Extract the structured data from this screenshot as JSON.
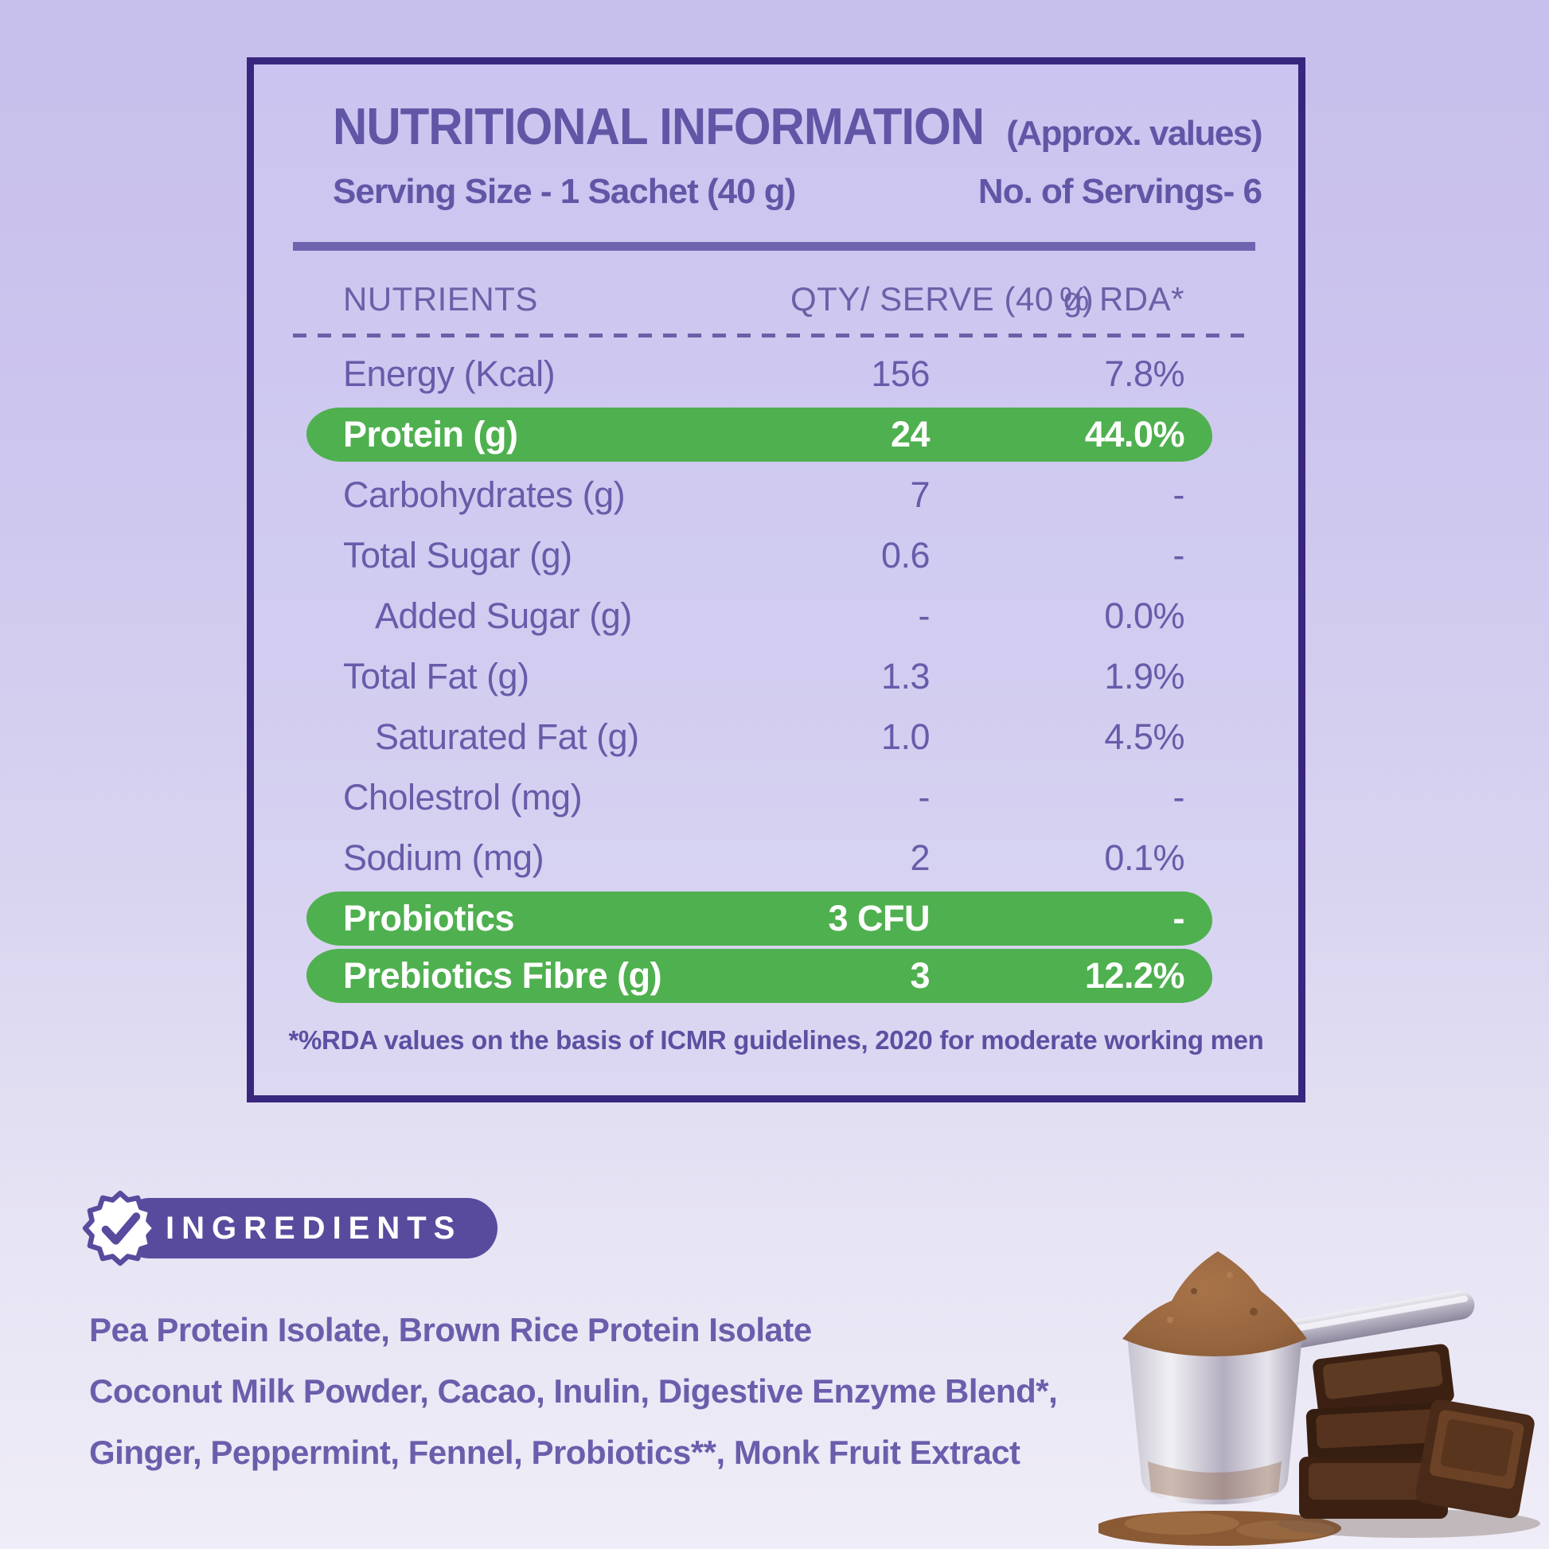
{
  "panel": {
    "title": "NUTRITIONAL INFORMATION",
    "approx": "(Approx. values)",
    "serving_size": "Serving Size - 1 Sachet (40 g)",
    "servings": "No. of Servings- 6",
    "columns": {
      "nutrients": "NUTRIENTS",
      "qty": "QTY/ SERVE (40 g)",
      "rda": "% RDA*"
    },
    "rows": [
      {
        "label": "Energy (Kcal)",
        "qty": "156",
        "rda": "7.8%",
        "highlight": false,
        "indent": false
      },
      {
        "label": "Protein (g)",
        "qty": "24",
        "rda": "44.0%",
        "highlight": true,
        "indent": false
      },
      {
        "label": "Carbohydrates (g)",
        "qty": "7",
        "rda": "-",
        "highlight": false,
        "indent": false
      },
      {
        "label": "Total Sugar (g)",
        "qty": "0.6",
        "rda": "-",
        "highlight": false,
        "indent": false
      },
      {
        "label": "Added Sugar (g)",
        "qty": "-",
        "rda": "0.0%",
        "highlight": false,
        "indent": true
      },
      {
        "label": "Total Fat (g)",
        "qty": "1.3",
        "rda": "1.9%",
        "highlight": false,
        "indent": false
      },
      {
        "label": "Saturated Fat (g)",
        "qty": "1.0",
        "rda": "4.5%",
        "highlight": false,
        "indent": true
      },
      {
        "label": "Cholestrol (mg)",
        "qty": "-",
        "rda": "-",
        "highlight": false,
        "indent": false
      },
      {
        "label": "Sodium (mg)",
        "qty": "2",
        "rda": "0.1%",
        "highlight": false,
        "indent": false
      },
      {
        "label": "Probiotics",
        "qty": "3 CFU",
        "rda": "-",
        "highlight": true,
        "indent": false
      },
      {
        "label": "Prebiotics Fibre (g)",
        "qty": "3",
        "rda": "12.2%",
        "highlight": true,
        "indent": false
      }
    ],
    "footnote": "*%RDA values on the basis of ICMR guidelines, 2020 for moderate working men"
  },
  "ingredients": {
    "badge": "INGREDIENTS",
    "lines": [
      "Pea Protein Isolate, Brown Rice Protein Isolate",
      "Coconut Milk Powder, Cacao, Inulin,  Digestive Enzyme Blend*,",
      "Ginger, Peppermint, Fennel, Probiotics**, Monk Fruit Extract"
    ],
    "photo_name": "cocoa-powder-scoop-and-chocolate-pieces"
  },
  "colors": {
    "border": "#38267f",
    "panel_bg": "#cbc4f0",
    "text_purple": "#675caa",
    "heading_purple": "#6156a6",
    "highlight_green": "#4fb04f",
    "badge_purple": "#584b9e",
    "white": "#ffffff"
  }
}
